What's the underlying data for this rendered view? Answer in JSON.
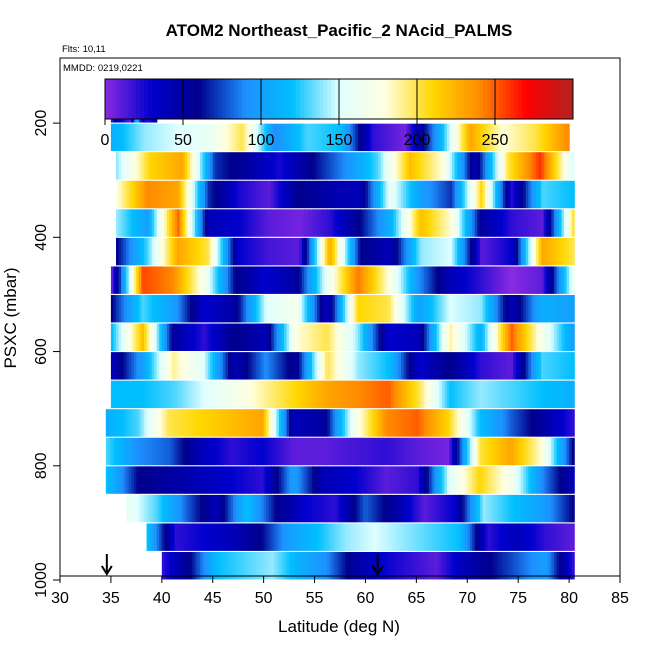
{
  "title": "ATOM2 Northeast_Pacific_2 NAcid_PALMS",
  "flights_label": "Flts: 10,11",
  "dates_label": "MMDD: 0219,0221",
  "chart_data": {
    "type": "heatmap",
    "title": "ATOM2 Northeast_Pacific_2 NAcid_PALMS",
    "xlabel": "Latitude (deg N)",
    "ylabel": "PSXC (mbar)",
    "xlim": [
      30,
      85
    ],
    "ylim": [
      1000,
      100
    ],
    "x_ticks": [
      "30",
      "35",
      "40",
      "45",
      "50",
      "55",
      "60",
      "65",
      "70",
      "75",
      "80",
      "85"
    ],
    "y_ticks": [
      "200",
      "400",
      "600",
      "800",
      "1000"
    ],
    "colorbar": {
      "range": [
        0,
        300
      ],
      "ticks": [
        "0",
        "50",
        "100",
        "150",
        "200",
        "250"
      ],
      "colors": [
        "#8a2be2",
        "#0000cd",
        "#00008b",
        "#1e90ff",
        "#00bfff",
        "#e0ffff",
        "#ffffe0",
        "#ffd700",
        "#ff8c00",
        "#ff0000",
        "#b22222"
      ]
    },
    "pressure_bins": [
      175,
      225,
      275,
      325,
      375,
      425,
      475,
      525,
      575,
      625,
      675,
      725,
      775,
      825,
      875,
      925,
      975
    ],
    "bin_lat_ranges": [
      [
        35.0,
        39.5
      ],
      [
        35.0,
        80.0
      ],
      [
        35.5,
        80.5
      ],
      [
        35.5,
        80.5
      ],
      [
        35.5,
        80.5
      ],
      [
        35.5,
        80.5
      ],
      [
        35.0,
        80.5
      ],
      [
        35.0,
        80.5
      ],
      [
        35.0,
        80.5
      ],
      [
        35.0,
        80.5
      ],
      [
        35.0,
        80.5
      ],
      [
        34.5,
        80.5
      ],
      [
        34.5,
        80.5
      ],
      [
        34.5,
        80.5
      ],
      [
        36.5,
        80.5
      ],
      [
        38.5,
        80.5
      ],
      [
        40.0,
        80.5
      ]
    ],
    "sample_values_by_bin": [
      [
        70,
        40,
        20,
        10,
        120,
        30,
        20,
        45
      ],
      [
        110,
        140,
        150,
        160,
        200,
        90,
        130,
        120,
        20,
        5,
        100,
        230,
        180,
        200,
        240
      ],
      [
        140,
        210,
        230,
        70,
        50,
        25,
        60,
        90,
        130,
        220,
        180,
        40,
        200,
        260,
        150
      ],
      [
        180,
        240,
        230,
        70,
        25,
        10,
        60,
        45,
        40,
        160,
        100,
        70,
        210,
        20,
        130,
        120
      ],
      [
        140,
        100,
        250,
        40,
        30,
        10,
        5,
        20,
        60,
        110,
        220,
        180,
        50,
        20,
        10,
        200
      ],
      [
        60,
        130,
        230,
        200,
        30,
        15,
        10,
        230,
        60,
        40,
        140,
        150,
        10,
        30,
        230,
        200
      ],
      [
        10,
        255,
        240,
        170,
        60,
        30,
        50,
        160,
        245,
        180,
        90,
        40,
        20,
        0,
        10,
        160
      ],
      [
        60,
        130,
        100,
        30,
        50,
        150,
        170,
        30,
        210,
        200,
        100,
        150,
        140,
        40,
        110,
        100
      ],
      [
        120,
        220,
        50,
        20,
        60,
        40,
        180,
        200,
        140,
        30,
        40,
        190,
        110,
        250,
        170,
        100
      ],
      [
        40,
        100,
        190,
        150,
        40,
        90,
        50,
        200,
        140,
        120,
        30,
        60,
        20,
        10,
        130,
        120
      ],
      [
        120,
        120,
        130,
        150,
        170,
        190,
        210,
        230,
        240,
        250,
        200,
        120,
        140,
        130,
        120,
        110
      ],
      [
        110,
        130,
        200,
        210,
        220,
        230,
        40,
        50,
        170,
        240,
        250,
        210,
        120,
        80,
        50,
        20
      ],
      [
        130,
        90,
        80,
        40,
        20,
        30,
        10,
        10,
        15,
        20,
        10,
        5,
        200,
        230,
        180,
        60
      ],
      [
        120,
        60,
        50,
        40,
        30,
        20,
        100,
        40,
        30,
        10,
        20,
        150,
        210,
        170,
        90,
        40
      ],
      [
        160,
        130,
        80,
        40,
        120,
        60,
        30,
        20,
        80,
        50,
        10,
        30,
        140,
        120,
        100,
        60
      ],
      [
        120,
        20,
        30,
        40,
        60,
        100,
        120,
        140,
        150,
        140,
        130,
        120,
        20,
        40,
        20,
        10
      ],
      [
        20,
        60,
        120,
        130,
        140,
        110,
        90,
        50,
        30,
        20,
        10,
        40,
        60,
        80,
        100,
        20
      ]
    ],
    "arrows_at_latitude": [
      34.6,
      61.2
    ]
  }
}
